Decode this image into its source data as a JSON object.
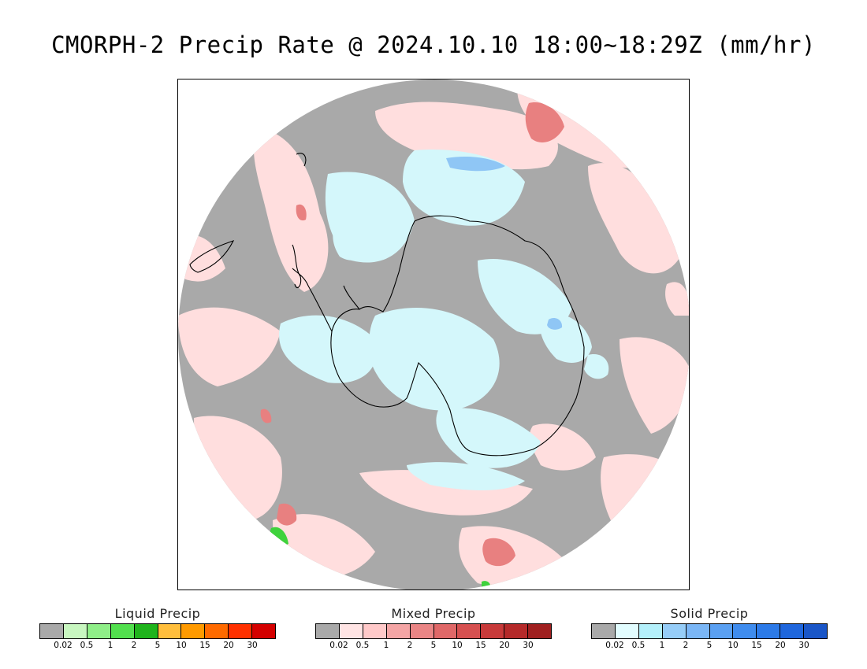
{
  "title": "CMORPH-2 Precip Rate @ 2024.10.10 18:00~18:29Z (mm/hr)",
  "map": {
    "projection": "south-polar-stereographic",
    "no_precip_color": "#a9a9a9",
    "coastline_color": "#000000"
  },
  "legends": [
    {
      "title": "Liquid Precip",
      "colors": [
        "#a9a9a9",
        "#c8f7c0",
        "#8fee88",
        "#52e04e",
        "#1fb41c",
        "#ffbe3c",
        "#ff9a00",
        "#ff6a00",
        "#ff3000",
        "#d40000"
      ],
      "ticks": [
        "0.02",
        "0.5",
        "1",
        "2",
        "5",
        "10",
        "15",
        "20",
        "30"
      ]
    },
    {
      "title": "Mixed Precip",
      "colors": [
        "#a9a9a9",
        "#ffe4e4",
        "#ffc9c9",
        "#f4a5a5",
        "#ea8585",
        "#e06868",
        "#d65050",
        "#c83a3a",
        "#b52a2a",
        "#a02020"
      ],
      "ticks": [
        "0.02",
        "0.5",
        "1",
        "2",
        "5",
        "10",
        "15",
        "20",
        "30"
      ]
    },
    {
      "title": "Solid Precip",
      "colors": [
        "#a9a9a9",
        "#e2fdff",
        "#b4f0fb",
        "#96cdf8",
        "#7ab6f6",
        "#5aa0f2",
        "#3f8cee",
        "#2c7ae8",
        "#1f66dd",
        "#1a56c8"
      ],
      "ticks": [
        "0.02",
        "0.5",
        "1",
        "2",
        "5",
        "10",
        "15",
        "20",
        "30"
      ]
    }
  ]
}
